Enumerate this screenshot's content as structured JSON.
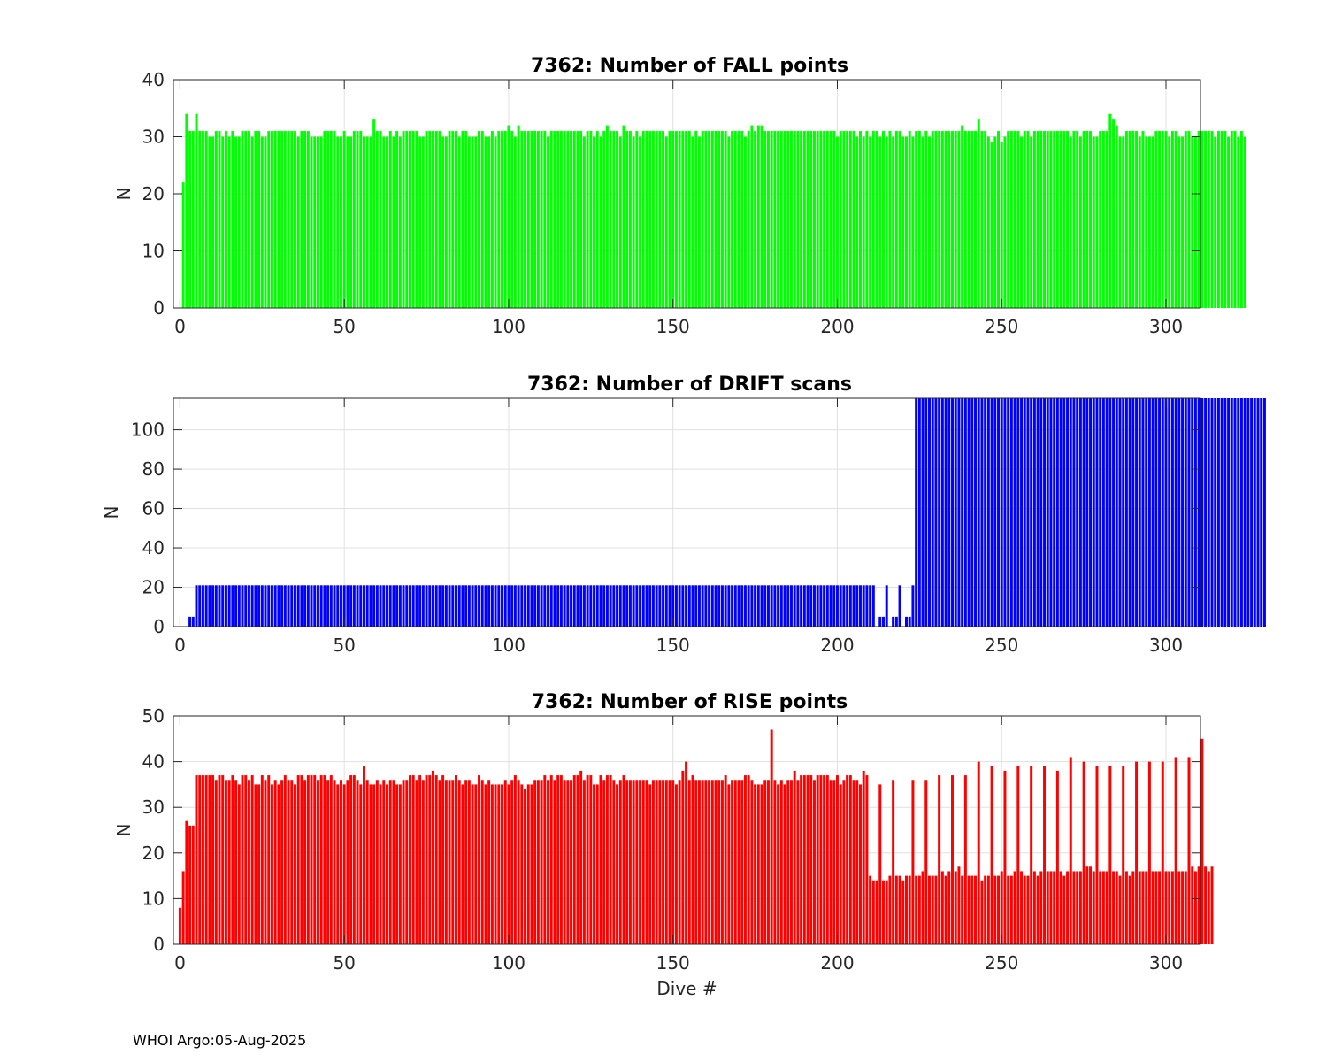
{
  "footer": "WHOI Argo:05-Aug-2025",
  "chart_data": [
    {
      "type": "bar",
      "title": "7362: Number of FALL points",
      "xlabel": "",
      "ylabel": "N",
      "xlim": [
        -2,
        310.5
      ],
      "ylim": [
        0,
        40
      ],
      "xticks": [
        0,
        50,
        100,
        150,
        200,
        250,
        300
      ],
      "yticks": [
        0,
        10,
        20,
        30,
        40
      ],
      "color": "#00ff00",
      "series": [
        {
          "name": "FALL points",
          "x_start": 1,
          "values": [
            22,
            34,
            31,
            31,
            34,
            31,
            31,
            31,
            30,
            30,
            31,
            31,
            30,
            31,
            30,
            31,
            30,
            30,
            31,
            31,
            31,
            30,
            31,
            31,
            30,
            30,
            31,
            31,
            31,
            31,
            31,
            31,
            31,
            31,
            31,
            30,
            31,
            31,
            31,
            30,
            30,
            30,
            30,
            31,
            31,
            31,
            31,
            30,
            30,
            31,
            30,
            30,
            31,
            31,
            31,
            30,
            30,
            30,
            33,
            31,
            31,
            30,
            30,
            31,
            30,
            31,
            30,
            31,
            31,
            31,
            31,
            31,
            30,
            30,
            31,
            31,
            31,
            31,
            31,
            30,
            30,
            31,
            31,
            31,
            30,
            31,
            31,
            30,
            30,
            30,
            31,
            31,
            30,
            30,
            31,
            30,
            31,
            31,
            31,
            32,
            31,
            30,
            32,
            31,
            31,
            31,
            31,
            31,
            31,
            31,
            31,
            30,
            31,
            31,
            31,
            31,
            31,
            31,
            31,
            31,
            31,
            31,
            30,
            31,
            31,
            30,
            31,
            30,
            31,
            32,
            31,
            31,
            31,
            30,
            32,
            31,
            31,
            30,
            31,
            30,
            31,
            31,
            31,
            31,
            31,
            31,
            31,
            30,
            31,
            31,
            31,
            31,
            31,
            31,
            31,
            30,
            31,
            30,
            31,
            31,
            31,
            31,
            31,
            31,
            31,
            31,
            30,
            31,
            31,
            31,
            31,
            30,
            31,
            32,
            31,
            32,
            32,
            31,
            31,
            31,
            31,
            31,
            31,
            31,
            31,
            31,
            31,
            31,
            31,
            31,
            31,
            31,
            31,
            31,
            31,
            31,
            31,
            31,
            31,
            30,
            31,
            31,
            31,
            31,
            31,
            30,
            31,
            30,
            31,
            30,
            31,
            31,
            30,
            31,
            30,
            31,
            30,
            31,
            31,
            30,
            30,
            31,
            30,
            31,
            31,
            30,
            31,
            30,
            31,
            31,
            31,
            31,
            31,
            31,
            31,
            31,
            31,
            32,
            31,
            31,
            31,
            31,
            33,
            31,
            31,
            30,
            29,
            30,
            31,
            29,
            30,
            31,
            31,
            31,
            31,
            30,
            31,
            31,
            30,
            31,
            31,
            31,
            31,
            31,
            31,
            31,
            31,
            31,
            31,
            31,
            30,
            31,
            31,
            30,
            31,
            31,
            31,
            30,
            30,
            31,
            31,
            31,
            34,
            33,
            32,
            30,
            30,
            31,
            31,
            31,
            31,
            30,
            31,
            30,
            30,
            30,
            31,
            31,
            31,
            31,
            30,
            31,
            31,
            30,
            30,
            31,
            31,
            30,
            30,
            31,
            31,
            31,
            31,
            31,
            30,
            31,
            31,
            31,
            30,
            31,
            31,
            30,
            31,
            30
          ]
        }
      ]
    },
    {
      "type": "bar",
      "title": "7362: Number of DRIFT scans",
      "xlabel": "",
      "ylabel": "N",
      "xlim": [
        -2,
        310.5
      ],
      "ylim": [
        0,
        116
      ],
      "xticks": [
        0,
        50,
        100,
        150,
        200,
        250,
        300
      ],
      "yticks": [
        0,
        20,
        40,
        60,
        80,
        100
      ],
      "color": "#0000ff",
      "series": [
        {
          "name": "DRIFT scans",
          "x_start": 1,
          "values": [
            0,
            0,
            5,
            5,
            21,
            21,
            21,
            21,
            21,
            21,
            21,
            21,
            21,
            21,
            21,
            21,
            21,
            21,
            21,
            21,
            21,
            21,
            21,
            21,
            21,
            21,
            21,
            21,
            21,
            21,
            21,
            21,
            21,
            21,
            21,
            21,
            21,
            21,
            21,
            21,
            21,
            21,
            21,
            21,
            21,
            21,
            21,
            21,
            21,
            21,
            21,
            21,
            21,
            21,
            21,
            21,
            21,
            21,
            21,
            21,
            21,
            21,
            21,
            21,
            21,
            21,
            21,
            21,
            21,
            21,
            21,
            21,
            21,
            21,
            21,
            21,
            21,
            21,
            21,
            21,
            21,
            21,
            21,
            21,
            21,
            21,
            21,
            21,
            21,
            21,
            21,
            21,
            21,
            21,
            21,
            21,
            21,
            21,
            21,
            21,
            21,
            21,
            21,
            21,
            21,
            21,
            21,
            21,
            21,
            21,
            21,
            21,
            21,
            21,
            21,
            21,
            21,
            21,
            21,
            21,
            21,
            21,
            21,
            21,
            21,
            21,
            21,
            21,
            21,
            21,
            21,
            21,
            21,
            21,
            21,
            21,
            21,
            21,
            21,
            21,
            21,
            21,
            21,
            21,
            21,
            21,
            21,
            21,
            21,
            21,
            21,
            21,
            21,
            21,
            21,
            21,
            21,
            21,
            21,
            21,
            21,
            21,
            21,
            21,
            21,
            21,
            21,
            21,
            21,
            21,
            21,
            21,
            21,
            21,
            21,
            21,
            21,
            21,
            21,
            21,
            21,
            21,
            21,
            21,
            21,
            21,
            21,
            21,
            21,
            21,
            21,
            21,
            21,
            21,
            21,
            21,
            21,
            21,
            21,
            21,
            21,
            21,
            21,
            21,
            21,
            21,
            21,
            21,
            21,
            21,
            21,
            0,
            5,
            5,
            21,
            0,
            5,
            5,
            21,
            0,
            5,
            5,
            21,
            120,
            120,
            120,
            120,
            120,
            120,
            120,
            120,
            120,
            120,
            120,
            120,
            120,
            120,
            120,
            120,
            120,
            120,
            120,
            120,
            120,
            120,
            120,
            120,
            120,
            120,
            120,
            120,
            120,
            120,
            120,
            120,
            120,
            120,
            120,
            120,
            120,
            120,
            120,
            120,
            120,
            120,
            120,
            120,
            120,
            120,
            120,
            120,
            120,
            120,
            120,
            120,
            120,
            120,
            120,
            120,
            120,
            120,
            120,
            120,
            120,
            120,
            120,
            120,
            120,
            120,
            120,
            120,
            120,
            120,
            120,
            120,
            120,
            120,
            120,
            120,
            120,
            120,
            120,
            120,
            120,
            120,
            120,
            120,
            120,
            120,
            120,
            120,
            120,
            120,
            120,
            120,
            120,
            120,
            120,
            120,
            120,
            120,
            120,
            120,
            120,
            120,
            120,
            120,
            120,
            120,
            120
          ]
        }
      ]
    },
    {
      "type": "bar",
      "title": "7362: Number of RISE points",
      "xlabel": "Dive #",
      "ylabel": "N",
      "xlim": [
        -2,
        310.5
      ],
      "ylim": [
        0,
        50
      ],
      "xticks": [
        0,
        50,
        100,
        150,
        200,
        250,
        300
      ],
      "yticks": [
        0,
        10,
        20,
        30,
        40,
        50
      ],
      "color": "#ff0000",
      "series": [
        {
          "name": "RISE points",
          "x_start": 0,
          "values": [
            8,
            16,
            27,
            26,
            26,
            37,
            37,
            37,
            37,
            37,
            37,
            36,
            37,
            37,
            36,
            36,
            37,
            36,
            35,
            37,
            37,
            36,
            37,
            35,
            35,
            37,
            36,
            37,
            35,
            36,
            35,
            36,
            37,
            36,
            36,
            35,
            37,
            37,
            36,
            37,
            37,
            37,
            36,
            37,
            37,
            36,
            37,
            36,
            35,
            36,
            35,
            36,
            37,
            37,
            36,
            35,
            39,
            36,
            35,
            35,
            36,
            35,
            36,
            35,
            36,
            36,
            35,
            35,
            36,
            36,
            37,
            37,
            36,
            37,
            36,
            37,
            37,
            38,
            37,
            36,
            37,
            36,
            36,
            36,
            37,
            36,
            35,
            36,
            36,
            35,
            35,
            37,
            36,
            35,
            36,
            35,
            35,
            35,
            35,
            36,
            35,
            36,
            37,
            36,
            35,
            34,
            35,
            35,
            36,
            36,
            36,
            37,
            36,
            37,
            36,
            37,
            37,
            36,
            36,
            36,
            37,
            37,
            38,
            36,
            37,
            37,
            35,
            35,
            37,
            36,
            37,
            37,
            36,
            35,
            36,
            37,
            36,
            36,
            36,
            36,
            36,
            36,
            36,
            35,
            36,
            36,
            36,
            36,
            36,
            36,
            36,
            35,
            36,
            38,
            40,
            36,
            37,
            36,
            36,
            36,
            36,
            36,
            36,
            36,
            36,
            36,
            37,
            35,
            36,
            36,
            36,
            36,
            37,
            37,
            36,
            35,
            35,
            35,
            36,
            36,
            47,
            36,
            35,
            36,
            35,
            36,
            36,
            38,
            36,
            37,
            37,
            37,
            37,
            36,
            37,
            37,
            37,
            37,
            36,
            36,
            37,
            35,
            36,
            37,
            37,
            36,
            36,
            35,
            38,
            37,
            15,
            14,
            14,
            35,
            14,
            14,
            15,
            36,
            15,
            15,
            14,
            15,
            15,
            36,
            15,
            15,
            16,
            36,
            15,
            15,
            15,
            37,
            16,
            15,
            16,
            37,
            16,
            17,
            15,
            37,
            15,
            15,
            15,
            40,
            14,
            15,
            15,
            39,
            15,
            15,
            16,
            38,
            15,
            15,
            16,
            39,
            16,
            15,
            15,
            39,
            16,
            15,
            16,
            39,
            16,
            16,
            16,
            38,
            16,
            15,
            16,
            41,
            16,
            16,
            16,
            40,
            17,
            17,
            16,
            39,
            16,
            16,
            16,
            39,
            16,
            16,
            15,
            39,
            16,
            15,
            16,
            40,
            16,
            16,
            16,
            40,
            16,
            16,
            16,
            40,
            16,
            16,
            16,
            41,
            16,
            16,
            16,
            41,
            17,
            16,
            17,
            45,
            17,
            16,
            17
          ]
        }
      ]
    }
  ]
}
